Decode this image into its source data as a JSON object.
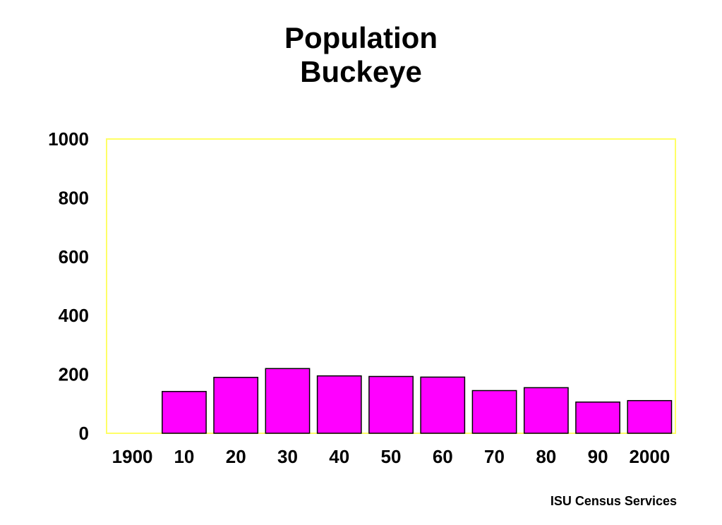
{
  "title_lines": [
    "Population",
    "Buckeye"
  ],
  "source": "ISU Census Services",
  "colors": {
    "bar_fill": "#ff00ff",
    "bar_stroke": "#000000",
    "frame": "#ffff66"
  },
  "chart_data": {
    "type": "bar",
    "title": "Population Buckeye",
    "categories": [
      "1900",
      "10",
      "20",
      "30",
      "40",
      "50",
      "60",
      "70",
      "80",
      "90",
      "2000"
    ],
    "values": [
      0,
      142,
      190,
      220,
      195,
      193,
      191,
      145,
      155,
      106,
      111
    ],
    "yticks": [
      "0",
      "200",
      "400",
      "600",
      "800",
      "1000"
    ],
    "ylim": [
      0,
      1000
    ],
    "xlabel": "",
    "ylabel": "",
    "grid": false,
    "legend": "none"
  }
}
